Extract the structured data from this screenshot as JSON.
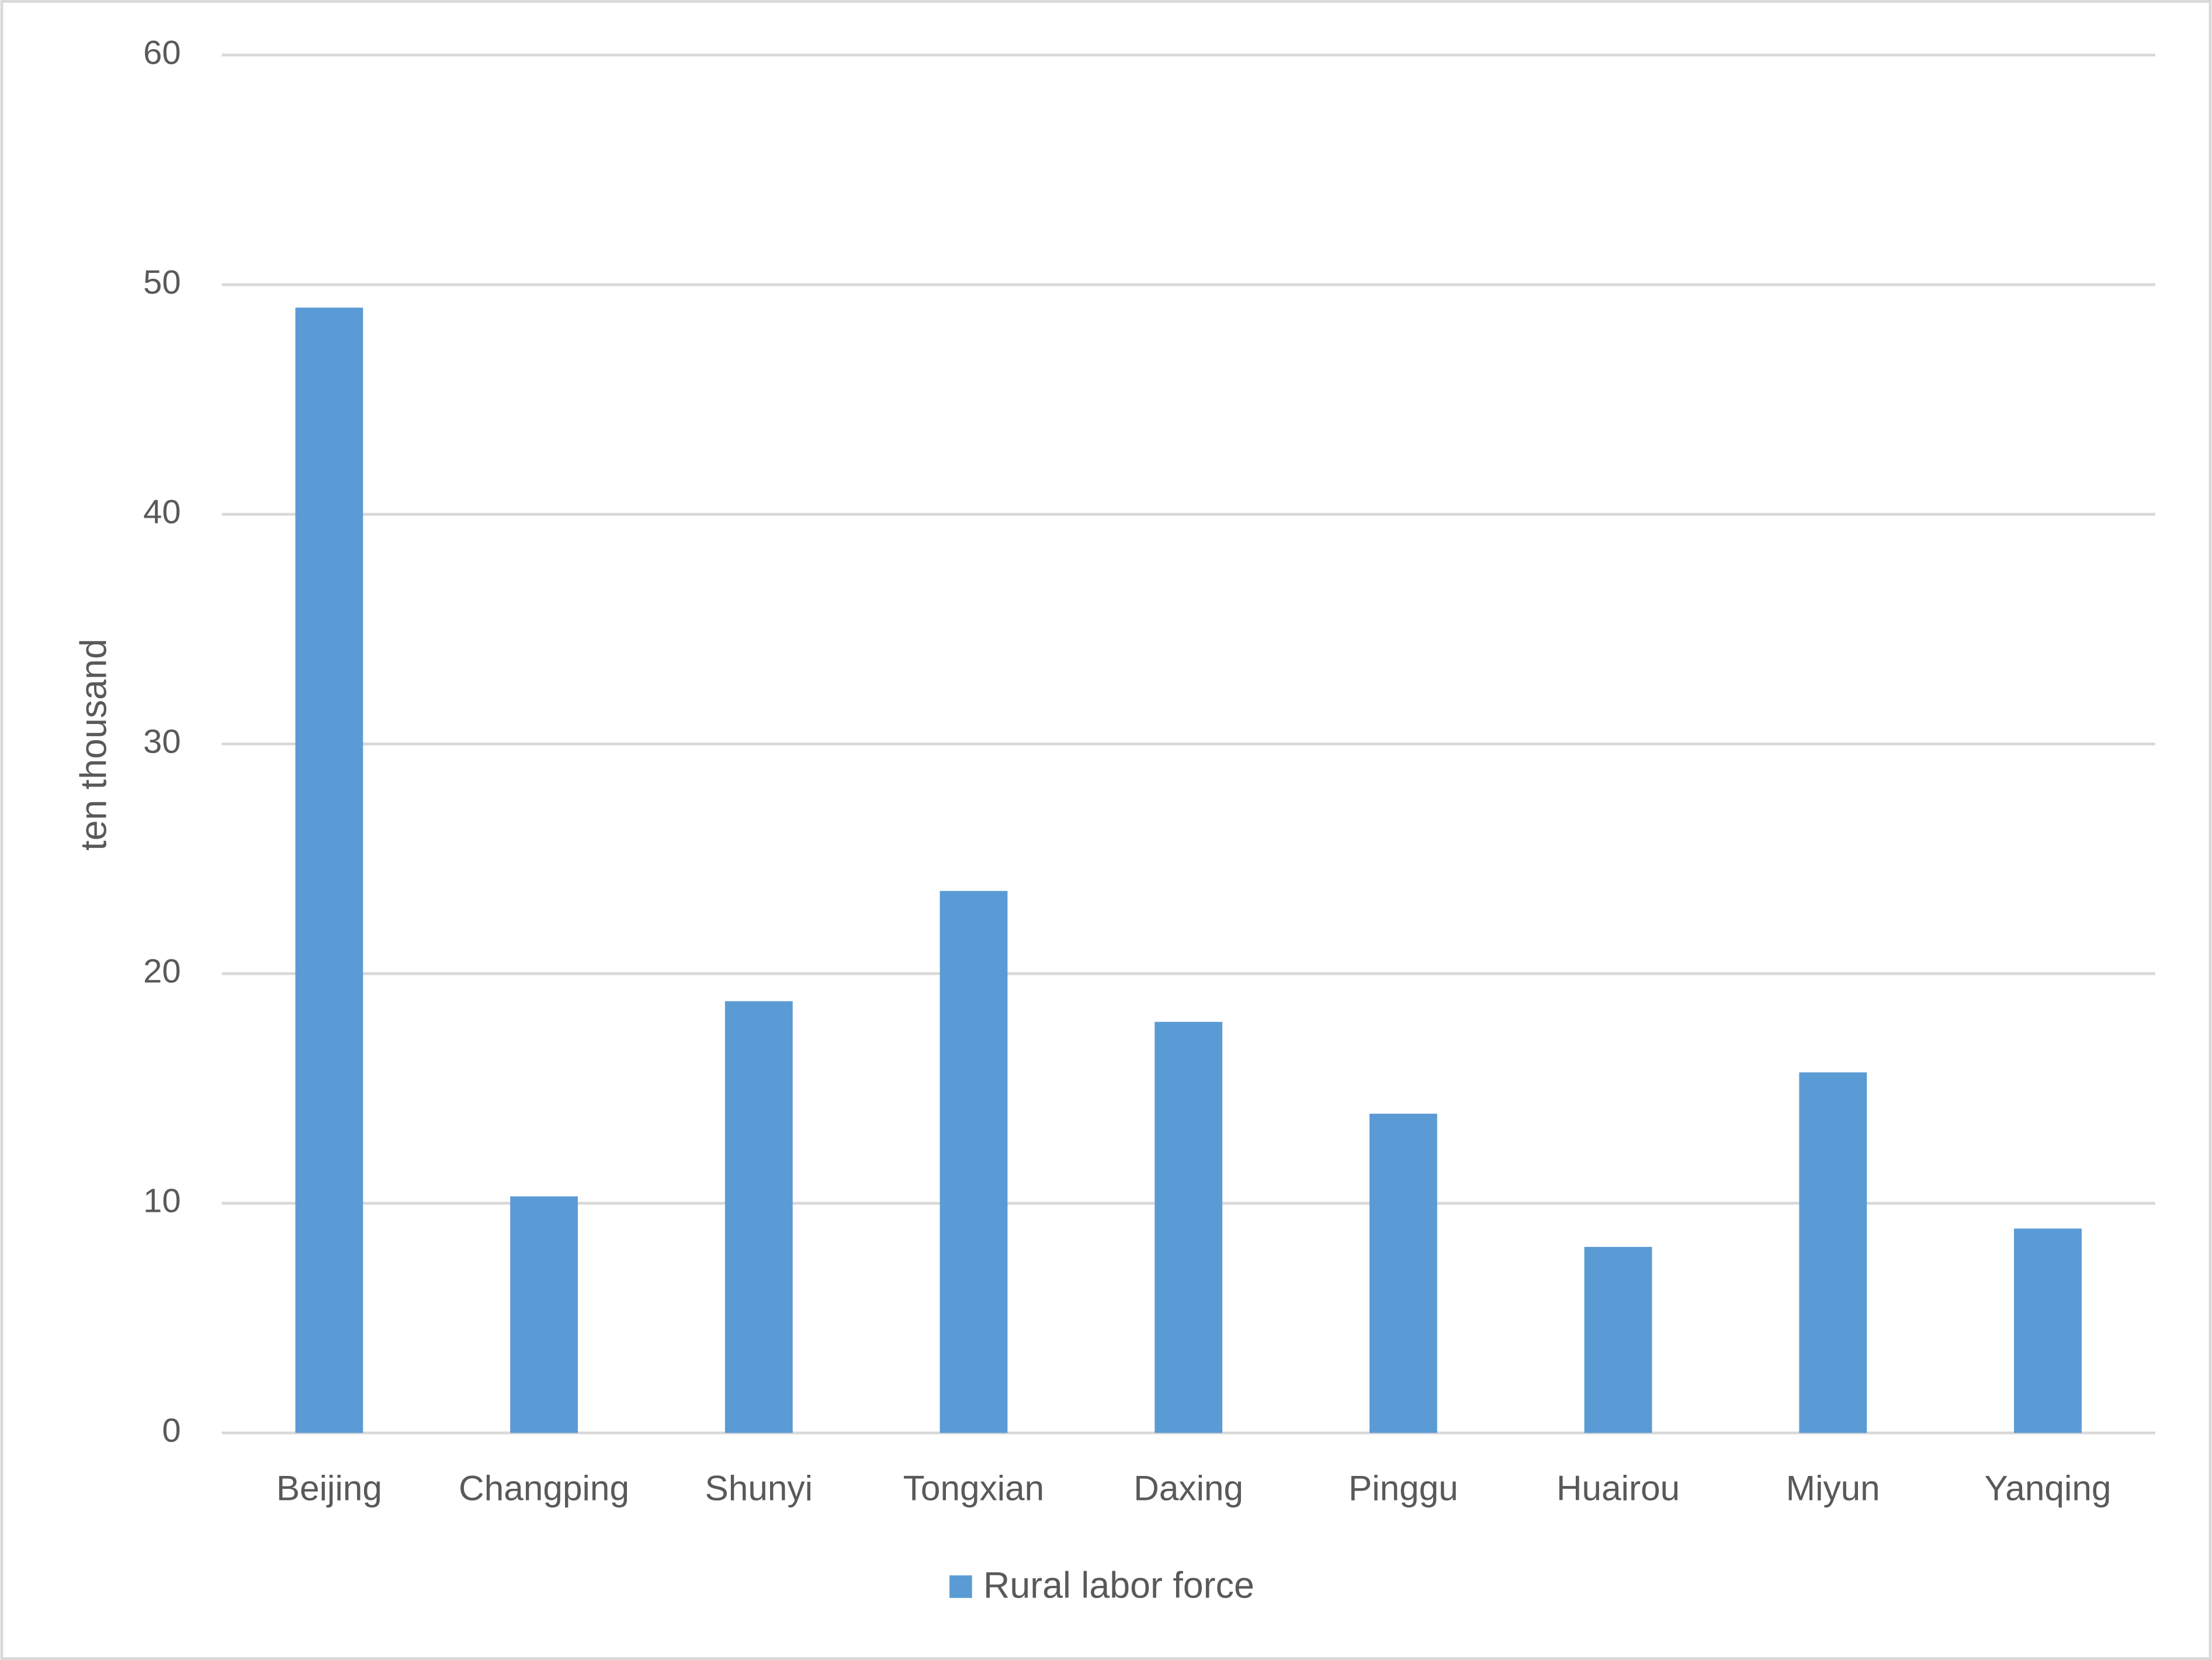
{
  "chart_data": {
    "type": "bar",
    "y_label": "ten thousand",
    "categories": [
      "Beijing",
      "Changping",
      "Shunyi",
      "Tongxian",
      "Daxing",
      "Pinggu",
      "Huairou",
      "Miyun",
      "Yanqing"
    ],
    "series": [
      {
        "name": "Rural labor force",
        "color": "#5b9bd5",
        "values": [
          49,
          10.3,
          18.8,
          23.6,
          17.9,
          13.9,
          8.1,
          15.7,
          8.9
        ]
      }
    ],
    "ylim": [
      0,
      60
    ],
    "yticks": [
      0,
      10,
      20,
      30,
      40,
      50,
      60
    ],
    "grid": true,
    "legend": "bottom"
  }
}
